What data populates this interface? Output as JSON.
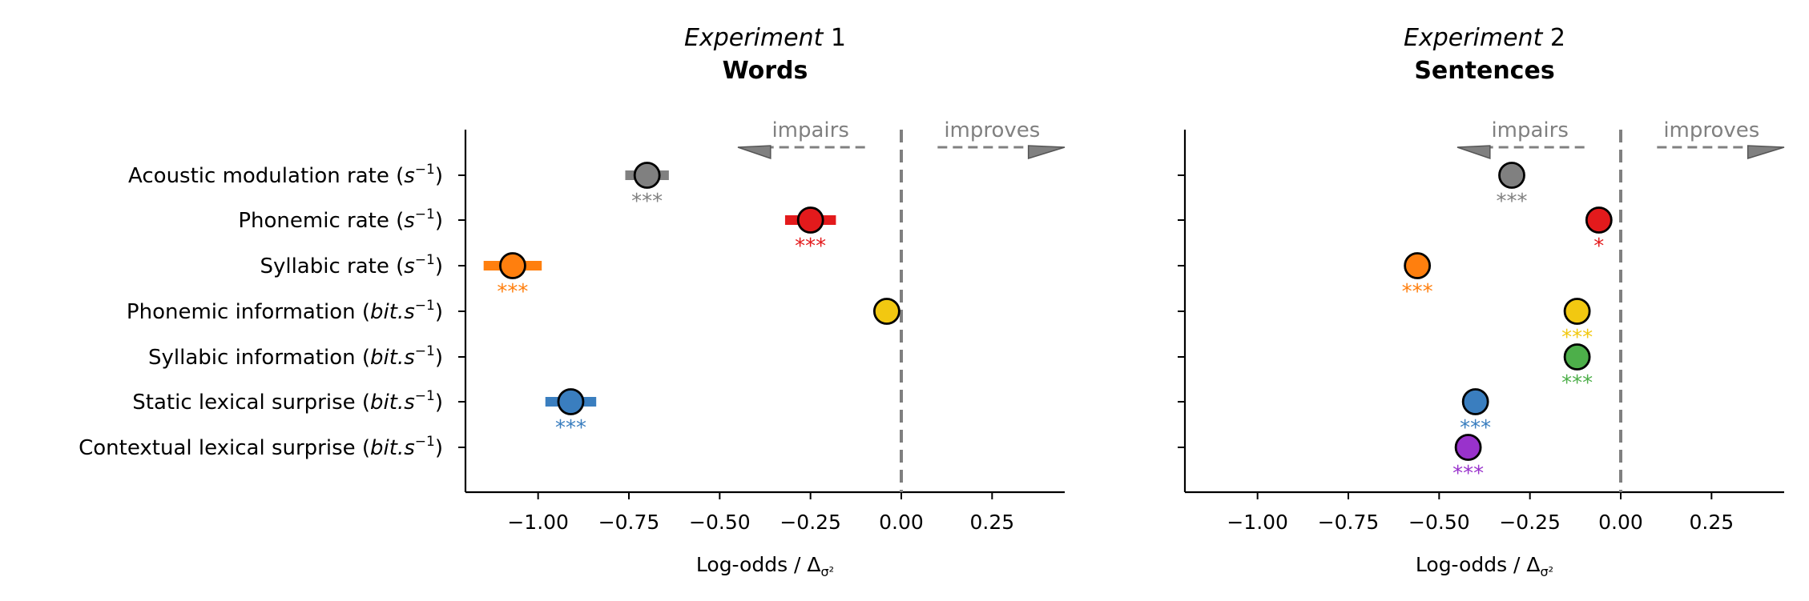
{
  "figure": {
    "colors": {
      "axis": "#000000",
      "reference_line": "#808080",
      "annotation": "#808080",
      "marker_edge": "#000000"
    }
  },
  "chart_data": [
    {
      "type": "scatter",
      "title_italic": "Experiment",
      "title_number": " 1",
      "subtitle": "Words",
      "xlabel_main": "Log-odds / Δ",
      "xlabel_sub": "σ²",
      "xlim": [
        -1.2,
        0.45
      ],
      "xticks": [
        -1.0,
        -0.75,
        -0.5,
        -0.25,
        0.0,
        0.25
      ],
      "xtick_labels": [
        "−1.00",
        "−0.75",
        "−0.50",
        "−0.25",
        "0.00",
        "0.25"
      ],
      "show_ylabels": true,
      "reference_x": 0,
      "annotations": {
        "left": "impairs",
        "right": "improves"
      },
      "points": [
        {
          "label": "Acoustic modulation rate (s⁻¹)",
          "label_main": "Acoustic modulation rate (",
          "label_var": "s",
          "label_sup": "−1",
          "label_end": ")",
          "x": -0.7,
          "ci": [
            -0.76,
            -0.64
          ],
          "color": "#808080",
          "sig": "***"
        },
        {
          "label": "Phonemic rate (s⁻¹)",
          "label_main": "Phonemic rate (",
          "label_var": "s",
          "label_sup": "−1",
          "label_end": ")",
          "x": -0.25,
          "ci": [
            -0.32,
            -0.18
          ],
          "color": "#e31a1c",
          "sig": "***"
        },
        {
          "label": "Syllabic rate (s⁻¹)",
          "label_main": "Syllabic rate (",
          "label_var": "s",
          "label_sup": "−1",
          "label_end": ")",
          "x": -1.07,
          "ci": [
            -1.15,
            -0.99
          ],
          "color": "#ff7f0e",
          "sig": "***"
        },
        {
          "label": "Phonemic information (bit.s⁻¹)",
          "label_main": "Phonemic information (",
          "label_var": "bit.s",
          "label_sup": "−1",
          "label_end": ")",
          "x": -0.04,
          "ci": [
            -0.05,
            -0.03
          ],
          "color": "#f2c811",
          "sig": ""
        },
        {
          "label": "Syllabic information (bit.s⁻¹)",
          "label_main": "Syllabic information (",
          "label_var": "bit.s",
          "label_sup": "−1",
          "label_end": ")",
          "x": null,
          "ci": null,
          "color": "#4daf4a",
          "sig": ""
        },
        {
          "label": "Static lexical surprise (bit.s⁻¹)",
          "label_main": "Static lexical surprise (",
          "label_var": "bit.s",
          "label_sup": "−1",
          "label_end": ")",
          "x": -0.91,
          "ci": [
            -0.98,
            -0.84
          ],
          "color": "#3a7ebf",
          "sig": "***"
        },
        {
          "label": "Contextual lexical surprise (bit.s⁻¹)",
          "label_main": "Contextual lexical surprise (",
          "label_var": "bit.s",
          "label_sup": "−1",
          "label_end": ")",
          "x": null,
          "ci": null,
          "color": "#9932cc",
          "sig": ""
        }
      ]
    },
    {
      "type": "scatter",
      "title_italic": "Experiment",
      "title_number": " 2",
      "subtitle": "Sentences",
      "xlabel_main": "Log-odds / Δ",
      "xlabel_sub": "σ²",
      "xlim": [
        -1.2,
        0.45
      ],
      "xticks": [
        -1.0,
        -0.75,
        -0.5,
        -0.25,
        0.0,
        0.25
      ],
      "xtick_labels": [
        "−1.00",
        "−0.75",
        "−0.50",
        "−0.25",
        "0.00",
        "0.25"
      ],
      "show_ylabels": false,
      "reference_x": 0,
      "annotations": {
        "left": "impairs",
        "right": "improves"
      },
      "points": [
        {
          "label": "Acoustic modulation rate (s⁻¹)",
          "x": -0.3,
          "ci": [
            -0.31,
            -0.29
          ],
          "color": "#808080",
          "sig": "***"
        },
        {
          "label": "Phonemic rate (s⁻¹)",
          "x": -0.06,
          "ci": [
            -0.07,
            -0.05
          ],
          "color": "#e31a1c",
          "sig": "*"
        },
        {
          "label": "Syllabic rate (s⁻¹)",
          "x": -0.56,
          "ci": [
            -0.57,
            -0.55
          ],
          "color": "#ff7f0e",
          "sig": "***"
        },
        {
          "label": "Phonemic information (bit.s⁻¹)",
          "x": -0.12,
          "ci": [
            -0.13,
            -0.11
          ],
          "color": "#f2c811",
          "sig": "***"
        },
        {
          "label": "Syllabic information (bit.s⁻¹)",
          "x": -0.12,
          "ci": [
            -0.13,
            -0.11
          ],
          "color": "#4daf4a",
          "sig": "***"
        },
        {
          "label": "Static lexical surprise (bit.s⁻¹)",
          "x": -0.4,
          "ci": [
            -0.41,
            -0.39
          ],
          "color": "#3a7ebf",
          "sig": "***"
        },
        {
          "label": "Contextual lexical surprise (bit.s⁻¹)",
          "x": -0.42,
          "ci": [
            -0.43,
            -0.41
          ],
          "color": "#9932cc",
          "sig": "***"
        }
      ]
    }
  ]
}
